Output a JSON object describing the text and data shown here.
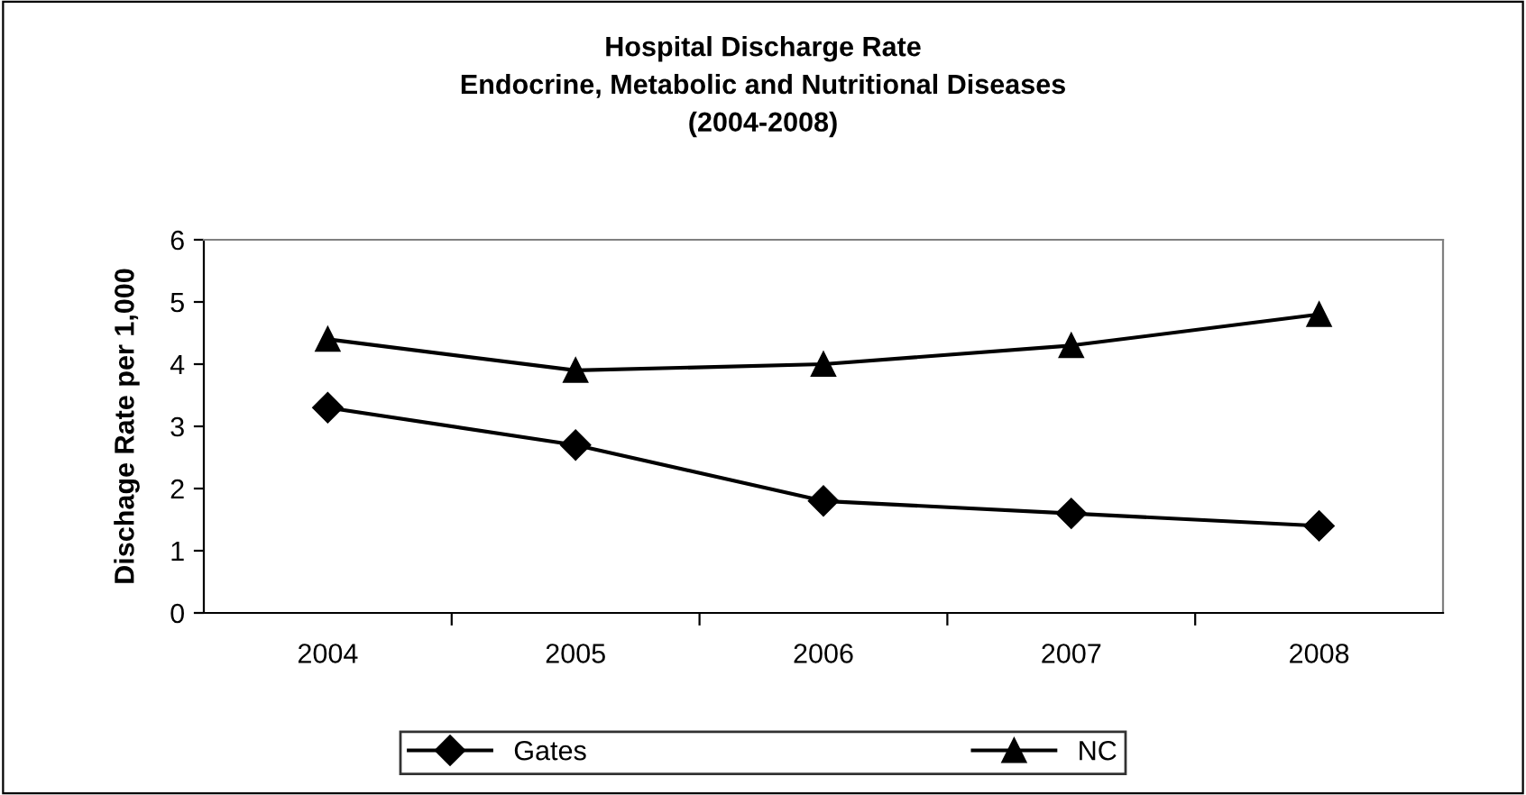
{
  "chart_data": {
    "type": "line",
    "title": "Hospital Discharge Rate\nEndocrine, Metabolic and Nutritional Diseases\n(2004-2008)",
    "ylabel": "Dischage Rate per 1,000",
    "categories": [
      "2004",
      "2005",
      "2006",
      "2007",
      "2008"
    ],
    "series": [
      {
        "name": "Gates",
        "color": "#000000",
        "marker": "diamond",
        "values": [
          3.3,
          2.7,
          1.8,
          1.6,
          1.4
        ]
      },
      {
        "name": "NC",
        "color": "#000000",
        "marker": "triangle",
        "values": [
          4.4,
          3.9,
          4.0,
          4.3,
          4.8
        ]
      }
    ],
    "ylim": [
      0,
      6
    ],
    "yticks": [
      0,
      1,
      2,
      3,
      4,
      5,
      6
    ],
    "grid": false,
    "legend": "bottom",
    "line_style": "solid"
  }
}
